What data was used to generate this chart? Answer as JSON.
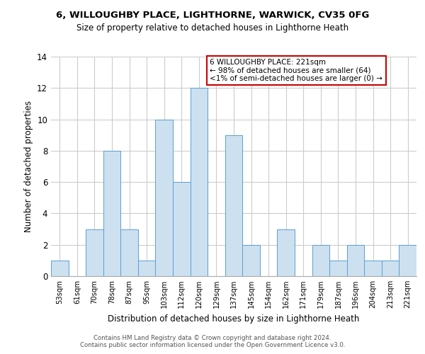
{
  "title": "6, WILLOUGHBY PLACE, LIGHTHORNE, WARWICK, CV35 0FG",
  "subtitle": "Size of property relative to detached houses in Lighthorne Heath",
  "xlabel": "Distribution of detached houses by size in Lighthorne Heath",
  "ylabel": "Number of detached properties",
  "footer_line1": "Contains HM Land Registry data © Crown copyright and database right 2024.",
  "footer_line2": "Contains public sector information licensed under the Open Government Licence v3.0.",
  "categories": [
    "53sqm",
    "61sqm",
    "70sqm",
    "78sqm",
    "87sqm",
    "95sqm",
    "103sqm",
    "112sqm",
    "120sqm",
    "129sqm",
    "137sqm",
    "145sqm",
    "154sqm",
    "162sqm",
    "171sqm",
    "179sqm",
    "187sqm",
    "196sqm",
    "204sqm",
    "213sqm",
    "221sqm"
  ],
  "values": [
    1,
    0,
    3,
    8,
    3,
    1,
    10,
    6,
    12,
    0,
    9,
    2,
    0,
    3,
    0,
    2,
    1,
    2,
    1,
    1,
    2
  ],
  "bar_color": "#cce0f0",
  "bar_edge_color": "#5a9fd4",
  "annotation_text": "6 WILLOUGHBY PLACE: 221sqm\n← 98% of detached houses are smaller (64)\n<1% of semi-detached houses are larger (0) →",
  "annotation_box_color": "#ffffff",
  "annotation_box_edge_color": "#cc0000",
  "ylim": [
    0,
    14
  ],
  "yticks": [
    0,
    2,
    4,
    6,
    8,
    10,
    12,
    14
  ],
  "background_color": "#ffffff",
  "grid_color": "#cccccc"
}
